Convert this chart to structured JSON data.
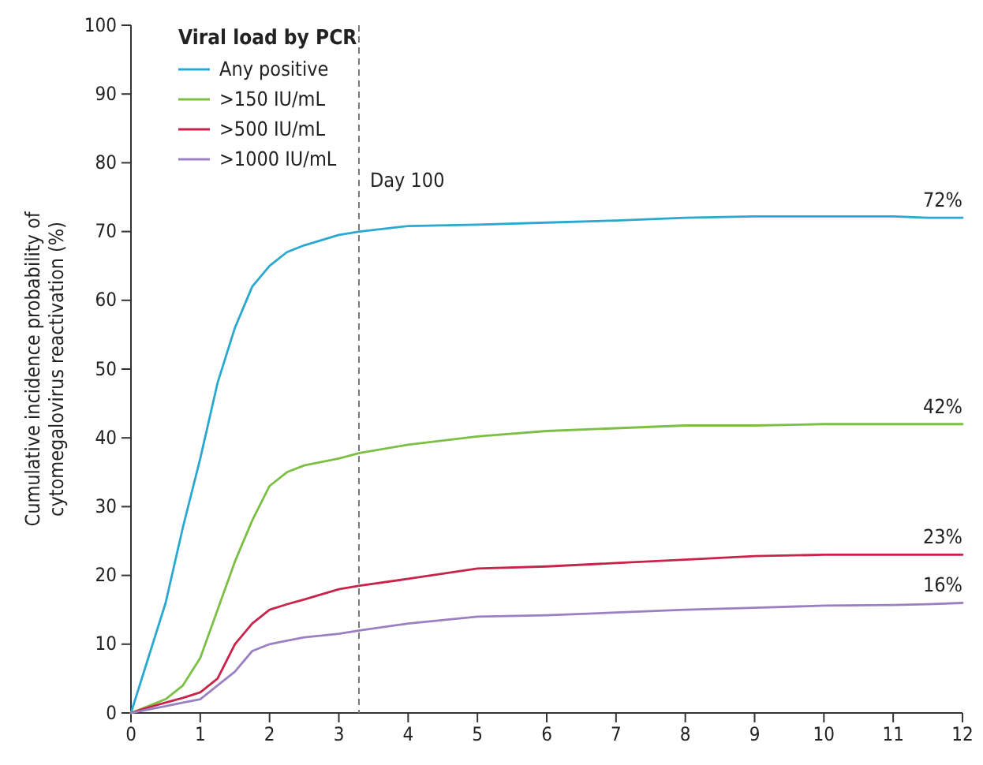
{
  "chart_data": {
    "type": "line",
    "ylabel": "Cumulative incidence probability of\ncytomegalovirus reactivation (%)",
    "legend_title": "Viral load by PCR",
    "legend": "top left",
    "grid": false,
    "line_style": "solid",
    "marker": "none",
    "xlim": [
      0,
      12
    ],
    "xticks": [
      0,
      1,
      2,
      3,
      4,
      5,
      6,
      7,
      8,
      9,
      10,
      11,
      12
    ],
    "ylim": [
      0,
      100
    ],
    "yticks": [
      0,
      10,
      20,
      30,
      40,
      50,
      60,
      70,
      80,
      90,
      100
    ],
    "x": [
      0,
      0.25,
      0.5,
      0.75,
      1,
      1.25,
      1.5,
      1.75,
      2,
      2.25,
      2.5,
      3,
      3.3,
      4,
      5,
      6,
      7,
      8,
      9,
      10,
      11,
      11.5,
      12
    ],
    "series": [
      {
        "name": "Any positive",
        "color": "#2aa8cf",
        "values": [
          0,
          8,
          16,
          27,
          37,
          48,
          56,
          62,
          65,
          67,
          68,
          69.5,
          70,
          70.8,
          71,
          71.3,
          71.6,
          72,
          72.2,
          72.2,
          72.2,
          72,
          72
        ],
        "value_labels": [
          null,
          null,
          null,
          null,
          null,
          null,
          null,
          null,
          null,
          null,
          null,
          null,
          null,
          null,
          null,
          null,
          null,
          null,
          null,
          null,
          null,
          null,
          "72%"
        ]
      },
      {
        "name": ">150 IU/mL",
        "color": "#7cbf45",
        "values": [
          0,
          1,
          2,
          4,
          8,
          15,
          22,
          28,
          33,
          35,
          36,
          37,
          37.8,
          39,
          40.2,
          41,
          41.4,
          41.8,
          41.8,
          42,
          42,
          42,
          42
        ],
        "value_labels": [
          null,
          null,
          null,
          null,
          null,
          null,
          null,
          null,
          null,
          null,
          null,
          null,
          null,
          null,
          null,
          null,
          null,
          null,
          null,
          null,
          null,
          null,
          "42%"
        ]
      },
      {
        "name": ">500 IU/mL",
        "color": "#c8234a",
        "values": [
          0,
          0.8,
          1.5,
          2.2,
          3,
          5,
          10,
          13,
          15,
          15.8,
          16.5,
          18,
          18.5,
          19.5,
          21,
          21.3,
          21.8,
          22.3,
          22.8,
          23,
          23,
          23,
          23
        ],
        "value_labels": [
          null,
          null,
          null,
          null,
          null,
          null,
          null,
          null,
          null,
          null,
          null,
          null,
          null,
          null,
          null,
          null,
          null,
          null,
          null,
          null,
          null,
          null,
          "23%"
        ]
      },
      {
        "name": ">1000 IU/mL",
        "color": "#9a80c2",
        "values": [
          0,
          0.5,
          1,
          1.5,
          2,
          4,
          6,
          9,
          10,
          10.5,
          11,
          11.5,
          12,
          13,
          14,
          14.2,
          14.6,
          15,
          15.3,
          15.6,
          15.7,
          15.8,
          16
        ],
        "value_labels": [
          null,
          null,
          null,
          null,
          null,
          null,
          null,
          null,
          null,
          null,
          null,
          null,
          null,
          null,
          null,
          null,
          null,
          null,
          null,
          null,
          null,
          null,
          "16%"
        ]
      }
    ],
    "ref_lines": [
      {
        "axis": "x",
        "value": 3.29,
        "label": "Day 100",
        "color": "#777777",
        "line_style": "dashed"
      }
    ]
  }
}
